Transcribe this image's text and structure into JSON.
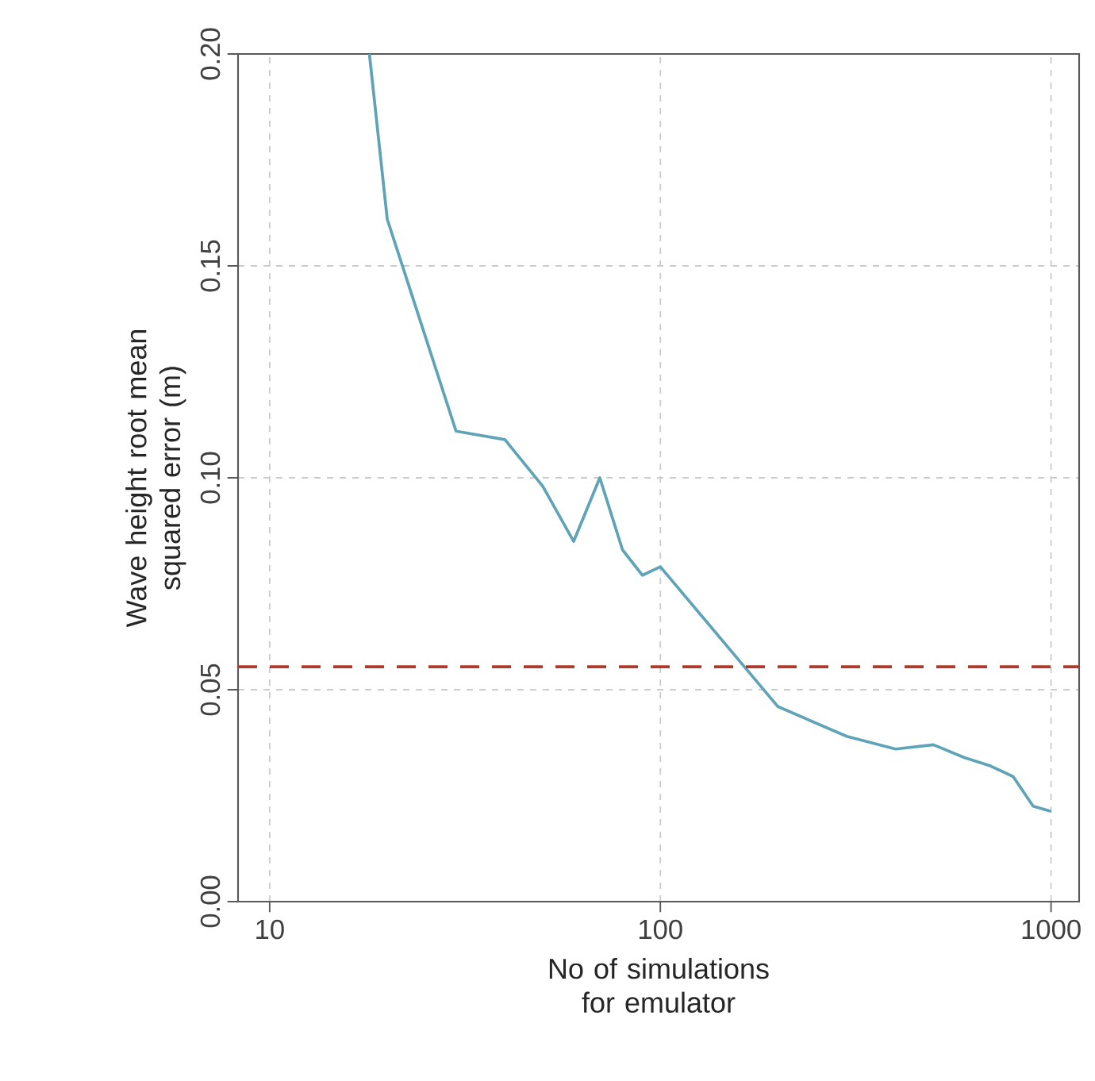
{
  "chart_data": {
    "type": "line",
    "xlabel": "No of simulations for emulator",
    "ylabel": "Wave height root mean squared error (m)",
    "x": [
      18,
      20,
      30,
      40,
      50,
      60,
      70,
      80,
      90,
      100,
      200,
      300,
      400,
      500,
      600,
      700,
      800,
      900,
      1000
    ],
    "series": [
      {
        "color": "#5fa3b8",
        "values": [
          0.2,
          0.161,
          0.111,
          0.109,
          0.098,
          0.085,
          0.1,
          0.083,
          0.077,
          0.079,
          0.046,
          0.039,
          0.036,
          0.037,
          0.034,
          0.032,
          0.0295,
          0.0225,
          0.0213
        ]
      }
    ],
    "log": "x",
    "xlim": [
      8.3,
      1180
    ],
    "ylim": [
      0,
      0.2
    ],
    "xticks": [
      10,
      100,
      1000
    ],
    "yticks": [
      {
        "value": 0,
        "label": "0.00"
      },
      {
        "value": 0.05,
        "label": "0.05"
      },
      {
        "value": 0.1,
        "label": "0.10"
      },
      {
        "value": 0.15,
        "label": "0.15"
      },
      {
        "value": 0.2,
        "label": "0.20"
      }
    ],
    "grid": true,
    "marker": "none",
    "line_style": "solid",
    "ref_lines": [
      {
        "axis": "y",
        "value": 0.0554,
        "color": "#b33a2a",
        "line_style": "dashed"
      }
    ]
  }
}
